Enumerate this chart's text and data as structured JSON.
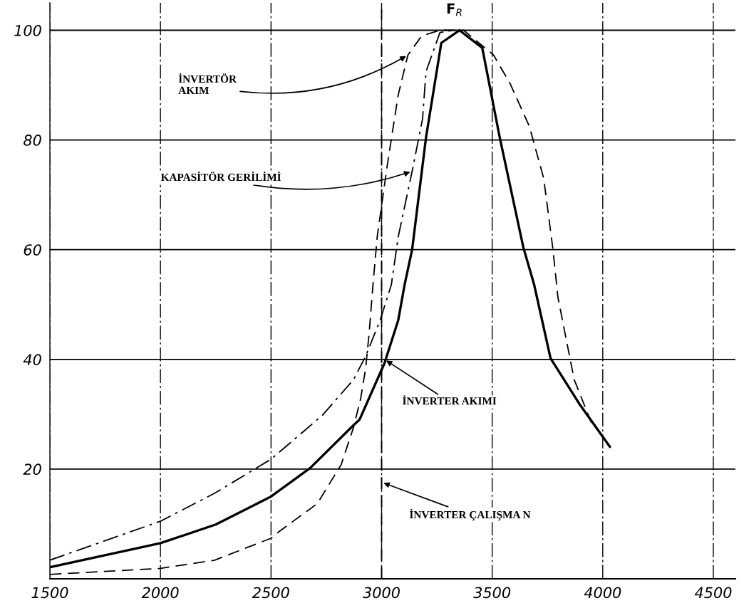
{
  "chart_data": {
    "type": "line",
    "xlim": [
      1500,
      4600
    ],
    "ylim": [
      0,
      105
    ],
    "xticks": [
      1500,
      2000,
      2500,
      3000,
      3500,
      4000,
      4500
    ],
    "yticks": [
      20,
      40,
      60,
      80,
      100
    ],
    "grid": true,
    "series": [
      {
        "color": "#000000",
        "line_style": "solid",
        "x": [
          1500,
          2000,
          2250,
          2500,
          2677,
          2873,
          2900,
          3013,
          3075,
          3104,
          3138,
          3201,
          3270,
          3352,
          3455,
          3534,
          3641,
          3690,
          3764,
          3894,
          4032
        ],
        "values": [
          2.1,
          6.5,
          9.9,
          15,
          20.2,
          28,
          29,
          39.3,
          47.1,
          53.6,
          60,
          80.5,
          97.7,
          100,
          96.8,
          80.5,
          60.4,
          53.6,
          40.2,
          31.9,
          24.1
        ]
      },
      {
        "color": "#000000",
        "line_style": "dashed",
        "x": [
          1500,
          2000,
          2245,
          2500,
          2536,
          2709,
          2817,
          2873,
          2905,
          2928,
          2944,
          2961,
          2980,
          3025,
          3075,
          3119,
          3182,
          3264,
          3371,
          3506,
          3581,
          3668,
          3733,
          3775,
          3797,
          3839,
          3871,
          3948
        ],
        "values": [
          0.8,
          1.9,
          3.4,
          7.4,
          8.6,
          13.7,
          20.8,
          27.6,
          32.8,
          38.4,
          44.9,
          53.6,
          62.3,
          75.2,
          88.2,
          95.5,
          99,
          100,
          100,
          95.5,
          90.3,
          82.5,
          73,
          60,
          51.4,
          42.8,
          36.3,
          28.5
        ]
      },
      {
        "color": "#000000",
        "line_style": "dashdot",
        "x": [
          1500,
          2000,
          2245,
          2500,
          2732,
          2873,
          2928,
          2993,
          3044,
          3075,
          3138,
          3185,
          3201,
          3264,
          3327
        ],
        "values": [
          3.4,
          10.5,
          15.6,
          21.8,
          29.8,
          36.3,
          40.6,
          47.1,
          53.6,
          62.3,
          74.3,
          83.8,
          92.5,
          99.6,
          100
        ]
      }
    ],
    "ref_lines": [
      {
        "axis": "x",
        "value": 3000,
        "line_style": "dashed",
        "color": "#000000"
      }
    ],
    "annotations": [
      {
        "text": "İNVERTÖR\nAKIM",
        "x": 3119,
        "y": 95.5
      },
      {
        "text": "KAPASİTÖR GERİLİMİ",
        "x": 3138,
        "y": 74.3
      },
      {
        "text": "İNVERTER AKIMI",
        "x": 3013,
        "y": 40
      },
      {
        "text": "İNVERTER ÇALIŞMA N",
        "x": 3000,
        "y": 17.6
      },
      {
        "text": "F$_{R}$",
        "x": 3352,
        "y": 100
      }
    ]
  }
}
